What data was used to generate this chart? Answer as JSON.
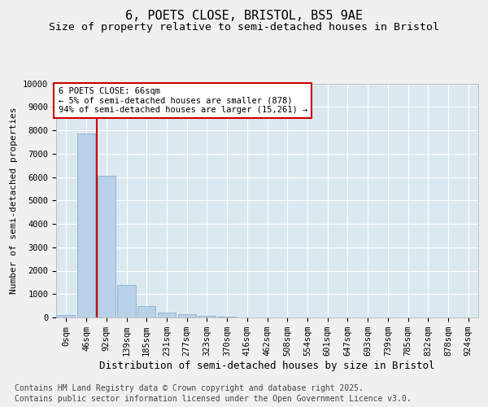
{
  "title": "6, POETS CLOSE, BRISTOL, BS5 9AE",
  "subtitle": "Size of property relative to semi-detached houses in Bristol",
  "xlabel": "Distribution of semi-detached houses by size in Bristol",
  "ylabel": "Number of semi-detached properties",
  "categories": [
    "0sqm",
    "46sqm",
    "92sqm",
    "139sqm",
    "185sqm",
    "231sqm",
    "277sqm",
    "323sqm",
    "370sqm",
    "416sqm",
    "462sqm",
    "508sqm",
    "554sqm",
    "601sqm",
    "647sqm",
    "693sqm",
    "739sqm",
    "785sqm",
    "832sqm",
    "878sqm",
    "924sqm"
  ],
  "values": [
    120,
    7850,
    6050,
    1400,
    500,
    220,
    130,
    80,
    30,
    10,
    5,
    3,
    2,
    1,
    1,
    0,
    0,
    0,
    0,
    0,
    0
  ],
  "bar_color": "#b8d0e8",
  "bar_edge_color": "#7aaacf",
  "annotation_text": "6 POETS CLOSE: 66sqm\n← 5% of semi-detached houses are smaller (878)\n94% of semi-detached houses are larger (15,261) →",
  "annotation_box_color": "#ffffff",
  "annotation_box_edge_color": "#cc0000",
  "vline_color": "#cc0000",
  "vline_x_index": 1.52,
  "ylim": [
    0,
    10000
  ],
  "yticks": [
    0,
    1000,
    2000,
    3000,
    4000,
    5000,
    6000,
    7000,
    8000,
    9000,
    10000
  ],
  "plot_background": "#dce8f0",
  "fig_background": "#f0f0f0",
  "grid_color": "#ffffff",
  "footer_line1": "Contains HM Land Registry data © Crown copyright and database right 2025.",
  "footer_line2": "Contains public sector information licensed under the Open Government Licence v3.0.",
  "title_fontsize": 11,
  "subtitle_fontsize": 9.5,
  "ylabel_fontsize": 8,
  "xlabel_fontsize": 9,
  "tick_fontsize": 7.5,
  "annotation_fontsize": 7.5,
  "footer_fontsize": 7
}
